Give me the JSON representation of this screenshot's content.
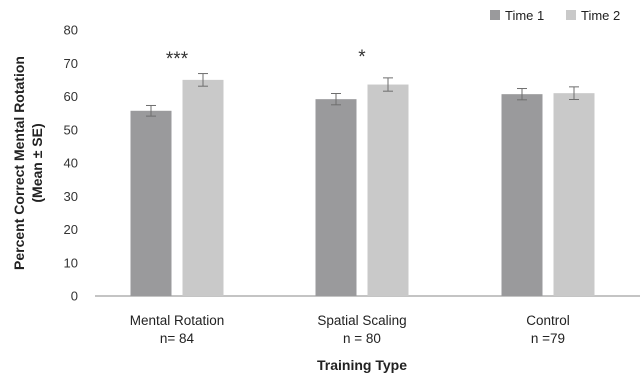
{
  "chart_data": {
    "type": "bar",
    "title": "",
    "xlabel": "Training Type",
    "ylabel_lines": [
      "Percent Correct Mental Rotation",
      "(Mean ± SE)"
    ],
    "ylim": [
      0,
      80
    ],
    "yticks": [
      0,
      10,
      20,
      30,
      40,
      50,
      60,
      70,
      80
    ],
    "grid": false,
    "legend_position": "top-right",
    "categories": [
      {
        "label": "Mental Rotation",
        "sub": "n= 84"
      },
      {
        "label": "Spatial Scaling",
        "sub": "n = 80"
      },
      {
        "label": "Control",
        "sub": "n =79"
      }
    ],
    "series": [
      {
        "name": "Time 1",
        "color": "#9a9a9c",
        "values": [
          55.7,
          59.2,
          60.7
        ],
        "errors": [
          1.6,
          1.7,
          1.7
        ]
      },
      {
        "name": "Time 2",
        "color": "#c9c9c9",
        "values": [
          65.0,
          63.6,
          61.0
        ],
        "errors": [
          1.9,
          2.0,
          1.9
        ]
      }
    ],
    "annotations": [
      {
        "category_index": 0,
        "text": "***"
      },
      {
        "category_index": 1,
        "text": "*"
      }
    ]
  }
}
